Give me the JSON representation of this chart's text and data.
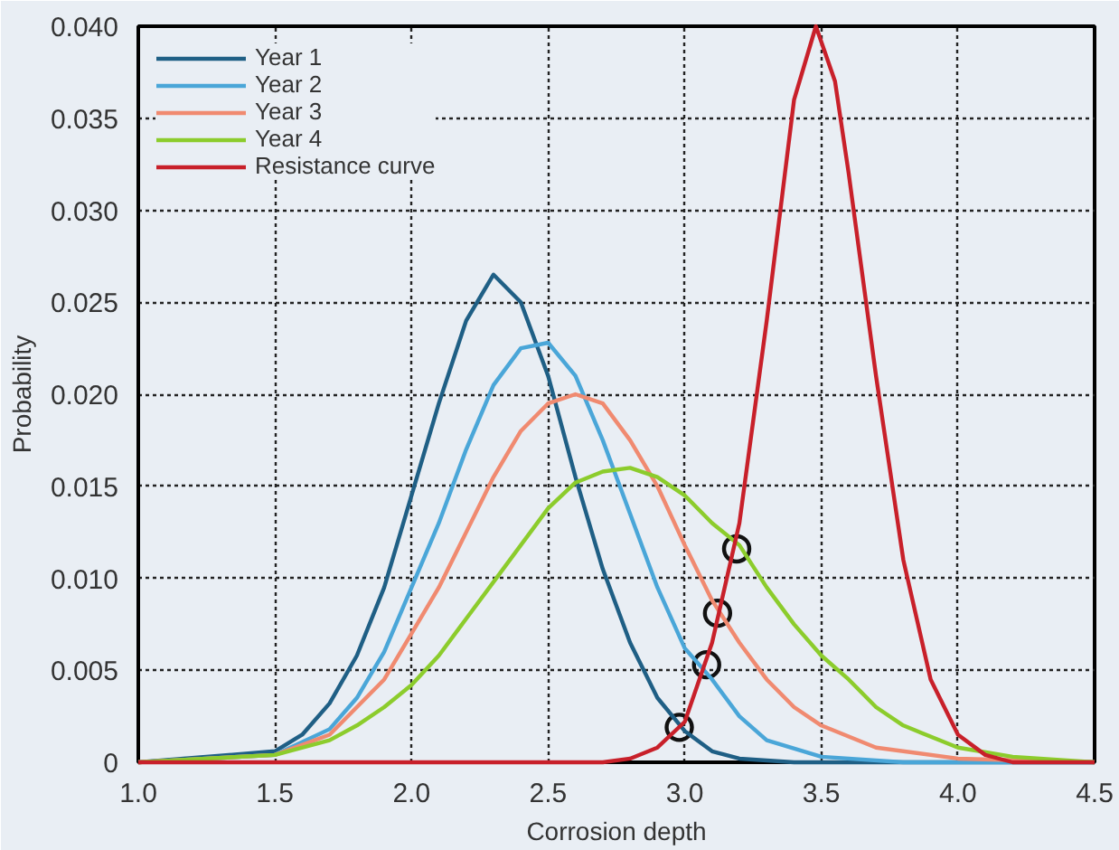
{
  "chart_data": {
    "type": "line",
    "xlabel": "Corrosion depth",
    "ylabel": "Probability",
    "xlim": [
      1.0,
      4.5
    ],
    "xticks": [
      {
        "value": 1.0,
        "label": "1.0"
      },
      {
        "value": 1.5,
        "label": "1.5"
      },
      {
        "value": 2.0,
        "label": "2.0"
      },
      {
        "value": 2.5,
        "label": "2.5"
      },
      {
        "value": 3.0,
        "label": "3.0"
      },
      {
        "value": 3.5,
        "label": "3.5"
      },
      {
        "value": 4.0,
        "label": "4.0"
      },
      {
        "value": 4.5,
        "label": "4.5"
      }
    ],
    "ylim": [
      0,
      0.04
    ],
    "yticks": [
      0,
      {
        "value": 0.005,
        "label": "0.005"
      },
      {
        "value": 0.01,
        "label": "0.010"
      },
      {
        "value": 0.015,
        "label": "0.015"
      },
      {
        "value": 0.02,
        "label": "0.020"
      },
      {
        "value": 0.025,
        "label": "0.025"
      },
      {
        "value": 0.03,
        "label": "0.030"
      },
      {
        "value": 0.035,
        "label": "0.035"
      },
      {
        "value": 0.04,
        "label": "0.040"
      }
    ],
    "grid": true,
    "legend": "top left",
    "line_style": "solid",
    "series": [
      {
        "name": "Year 1",
        "color": "#1f5f85",
        "x": [
          1.0,
          1.5,
          1.6,
          1.7,
          1.8,
          1.9,
          2.0,
          2.1,
          2.2,
          2.3,
          2.4,
          2.5,
          2.6,
          2.7,
          2.8,
          2.9,
          3.0,
          3.1,
          3.2,
          3.4,
          4.5
        ],
        "values": [
          0,
          0.0006,
          0.0015,
          0.0032,
          0.0058,
          0.0095,
          0.0145,
          0.0195,
          0.024,
          0.0265,
          0.025,
          0.021,
          0.0155,
          0.0105,
          0.0065,
          0.0035,
          0.0017,
          0.0006,
          0.0002,
          0,
          0
        ]
      },
      {
        "name": "Year 2",
        "color": "#4aa6d8",
        "x": [
          1.0,
          1.5,
          1.7,
          1.8,
          1.9,
          2.0,
          2.1,
          2.2,
          2.3,
          2.4,
          2.5,
          2.6,
          2.7,
          2.8,
          2.9,
          3.0,
          3.1,
          3.2,
          3.3,
          3.5,
          3.8,
          4.5
        ],
        "values": [
          0,
          0.0004,
          0.0018,
          0.0035,
          0.006,
          0.0095,
          0.013,
          0.017,
          0.0205,
          0.0225,
          0.0228,
          0.021,
          0.0175,
          0.0135,
          0.0095,
          0.0062,
          0.0045,
          0.0025,
          0.0012,
          0.0003,
          0,
          0
        ]
      },
      {
        "name": "Year 3",
        "color": "#f08a70",
        "x": [
          1.0,
          1.5,
          1.7,
          1.8,
          1.9,
          2.0,
          2.1,
          2.2,
          2.3,
          2.4,
          2.5,
          2.6,
          2.7,
          2.8,
          2.9,
          3.0,
          3.1,
          3.2,
          3.3,
          3.4,
          3.5,
          3.7,
          4.0,
          4.5
        ],
        "values": [
          0,
          0.0004,
          0.0015,
          0.003,
          0.0045,
          0.007,
          0.0095,
          0.0125,
          0.0155,
          0.018,
          0.0195,
          0.02,
          0.0195,
          0.0175,
          0.015,
          0.0118,
          0.0088,
          0.0065,
          0.0045,
          0.003,
          0.002,
          0.0008,
          0.0002,
          0
        ]
      },
      {
        "name": "Year 4",
        "color": "#8ccc2c",
        "x": [
          1.0,
          1.5,
          1.7,
          1.8,
          1.9,
          2.0,
          2.1,
          2.2,
          2.3,
          2.4,
          2.5,
          2.6,
          2.7,
          2.8,
          2.9,
          3.0,
          3.1,
          3.2,
          3.3,
          3.4,
          3.5,
          3.6,
          3.7,
          3.8,
          4.0,
          4.2,
          4.5
        ],
        "values": [
          0,
          0.0004,
          0.0012,
          0.002,
          0.003,
          0.0042,
          0.0058,
          0.0078,
          0.0098,
          0.0118,
          0.0138,
          0.0152,
          0.0158,
          0.016,
          0.0155,
          0.0145,
          0.013,
          0.0118,
          0.0095,
          0.0075,
          0.0058,
          0.0045,
          0.003,
          0.002,
          0.0008,
          0.0003,
          0
        ]
      },
      {
        "name": "Resistance curve",
        "color": "#c8202a",
        "x": [
          1.0,
          2.7,
          2.8,
          2.9,
          3.0,
          3.1,
          3.2,
          3.3,
          3.4,
          3.48,
          3.55,
          3.6,
          3.7,
          3.8,
          3.9,
          4.0,
          4.1,
          4.2,
          4.5
        ],
        "values": [
          0,
          0,
          0.0002,
          0.0008,
          0.0022,
          0.0065,
          0.013,
          0.024,
          0.036,
          0.04,
          0.037,
          0.032,
          0.021,
          0.011,
          0.0045,
          0.0015,
          0.0004,
          0,
          0
        ]
      },
      {
        "type": "scatter",
        "marker": "circle",
        "color": "#111111",
        "x": [
          2.98,
          3.08,
          3.12,
          3.19
        ],
        "values": [
          0.0019,
          0.0053,
          0.0081,
          0.0116
        ]
      }
    ]
  }
}
